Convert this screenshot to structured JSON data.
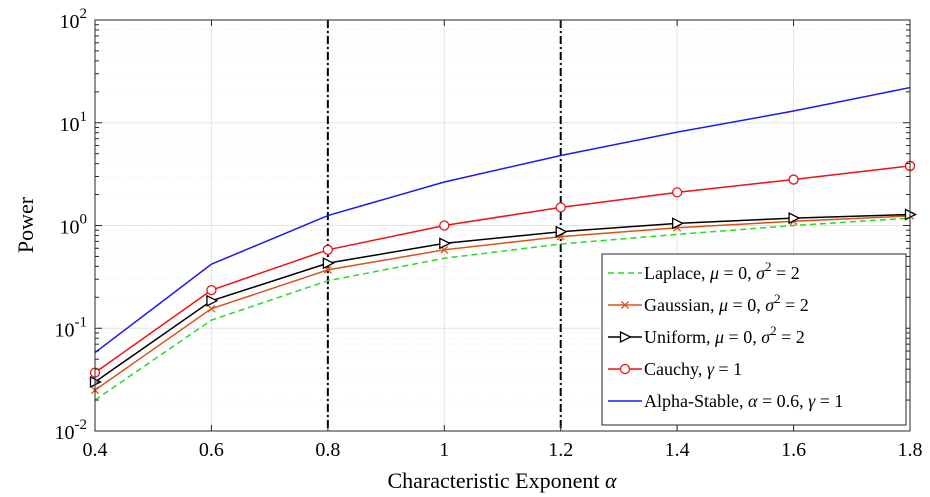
{
  "chart_data": {
    "type": "line",
    "title": "",
    "xlabel": "Characteristic Exponent α",
    "ylabel": "Power",
    "xlim": [
      0.4,
      1.8
    ],
    "ylim": [
      0.01,
      100
    ],
    "yscale": "log",
    "grid": true,
    "legend_position": "bottom-right",
    "x_ticks": [
      "0.4",
      "0.6",
      "0.8",
      "1",
      "1.2",
      "1.4",
      "1.6",
      "1.8"
    ],
    "y_ticks": [
      {
        "base": "10",
        "exp": "-2"
      },
      {
        "base": "10",
        "exp": "-1"
      },
      {
        "base": "10",
        "exp": "0"
      },
      {
        "base": "10",
        "exp": "1"
      },
      {
        "base": "10",
        "exp": "2"
      }
    ],
    "x": [
      0.4,
      0.6,
      0.8,
      1.0,
      1.2,
      1.4,
      1.6,
      1.8
    ],
    "vertical_lines": [
      0.8,
      1.2
    ],
    "series": [
      {
        "name": "Laplace, μ = 0, σ² = 2",
        "legend_parts": [
          "Laplace, ",
          "μ",
          " = 0, ",
          "σ",
          "2",
          " = 2"
        ],
        "color": "#22dd22",
        "style": "dashed",
        "marker": "none",
        "values": [
          0.02,
          0.12,
          0.29,
          0.48,
          0.66,
          0.82,
          1.0,
          1.18
        ]
      },
      {
        "name": "Gaussian, μ = 0, σ² = 2",
        "legend_parts": [
          "Gaussian, ",
          "μ",
          " = 0, ",
          "σ",
          "2",
          " = 2"
        ],
        "color": "#d95319",
        "style": "solid",
        "marker": "x",
        "values": [
          0.025,
          0.155,
          0.37,
          0.58,
          0.78,
          0.95,
          1.1,
          1.24
        ]
      },
      {
        "name": "Uniform, μ = 0, σ² = 2",
        "legend_parts": [
          "Uniform, ",
          "μ",
          " = 0, ",
          "σ",
          "2",
          " = 2"
        ],
        "color": "#000000",
        "style": "solid",
        "marker": "triangle-right",
        "values": [
          0.03,
          0.185,
          0.43,
          0.67,
          0.87,
          1.05,
          1.18,
          1.28
        ]
      },
      {
        "name": "Cauchy, γ = 1",
        "legend_parts": [
          "Cauchy, ",
          "γ",
          " = 1"
        ],
        "color": "#ee1111",
        "style": "solid",
        "marker": "circle",
        "values": [
          0.037,
          0.235,
          0.58,
          1.0,
          1.5,
          2.1,
          2.8,
          3.8
        ]
      },
      {
        "name": "Alpha-Stable, α = 0.6, γ = 1",
        "legend_parts": [
          "Alpha-Stable, ",
          "α",
          " = 0.6, ",
          "γ",
          " = 1"
        ],
        "color": "#1a1aee",
        "style": "solid",
        "marker": "none",
        "values": [
          0.058,
          0.42,
          1.25,
          2.65,
          4.8,
          8.1,
          13.0,
          22.0
        ]
      }
    ]
  }
}
